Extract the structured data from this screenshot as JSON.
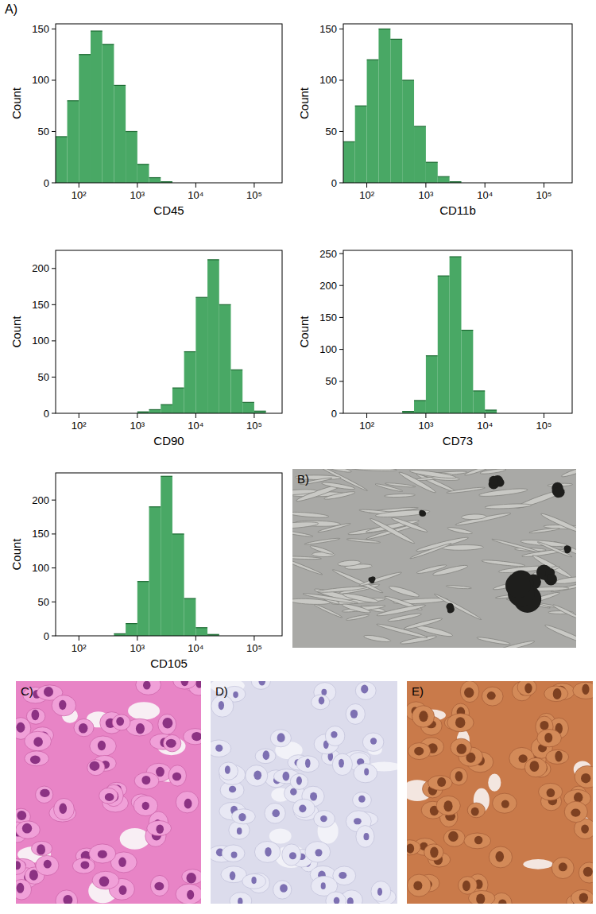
{
  "panel_label": "A)",
  "chart_data": [
    {
      "type": "histogram",
      "x_label": "CD45",
      "y_label": "Count",
      "log": "x",
      "color": "#49a865",
      "bins": [
        39.8,
        63.1,
        100,
        158.5,
        251.2,
        398.1,
        631,
        1000,
        1584.9,
        2511.9,
        3981.1
      ],
      "counts": [
        45,
        80,
        125,
        148,
        135,
        95,
        50,
        18,
        5,
        1
      ],
      "xlim": [
        40,
        300000
      ],
      "ylim": [
        0,
        155
      ],
      "xticks": [
        {
          "value": 100,
          "label": "10²"
        },
        {
          "value": 1000,
          "label": "10³"
        },
        {
          "value": 10000,
          "label": "10⁴"
        },
        {
          "value": 100000,
          "label": "10⁵"
        }
      ],
      "yticks": [
        0,
        50,
        100,
        150
      ]
    },
    {
      "type": "histogram",
      "x_label": "CD11b",
      "y_label": "Count",
      "log": "x",
      "color": "#49a865",
      "bins": [
        39.8,
        63.1,
        100,
        158.5,
        251.2,
        398.1,
        631,
        1000,
        1584.9,
        2511.9,
        3981.1
      ],
      "counts": [
        40,
        75,
        120,
        150,
        140,
        100,
        55,
        20,
        6,
        1
      ],
      "xlim": [
        40,
        300000
      ],
      "ylim": [
        0,
        155
      ],
      "xticks": [
        {
          "value": 100,
          "label": "10²"
        },
        {
          "value": 1000,
          "label": "10³"
        },
        {
          "value": 10000,
          "label": "10⁴"
        },
        {
          "value": 100000,
          "label": "10⁵"
        }
      ],
      "yticks": [
        0,
        50,
        100,
        150
      ]
    },
    {
      "type": "histogram",
      "x_label": "CD90",
      "y_label": "Count",
      "log": "x",
      "color": "#49a865",
      "bins": [
        1000,
        1584.9,
        2511.9,
        3981.1,
        6309.6,
        10000,
        15848.9,
        25118.9,
        39810.7,
        63095.7,
        100000,
        158489.3
      ],
      "counts": [
        2,
        5,
        12,
        35,
        85,
        160,
        212,
        150,
        60,
        15,
        3
      ],
      "xlim": [
        40,
        300000
      ],
      "ylim": [
        0,
        225
      ],
      "xticks": [
        {
          "value": 100,
          "label": "10²"
        },
        {
          "value": 1000,
          "label": "10³"
        },
        {
          "value": 10000,
          "label": "10⁴"
        },
        {
          "value": 100000,
          "label": "10⁵"
        }
      ],
      "yticks": [
        0,
        50,
        100,
        150,
        200
      ]
    },
    {
      "type": "histogram",
      "x_label": "CD73",
      "y_label": "Count",
      "log": "x",
      "color": "#49a865",
      "bins": [
        398.1,
        631,
        1000,
        1584.9,
        2511.9,
        3981.1,
        6309.6,
        10000,
        15848.9
      ],
      "counts": [
        3,
        20,
        90,
        215,
        245,
        130,
        35,
        5
      ],
      "xlim": [
        40,
        300000
      ],
      "ylim": [
        0,
        255
      ],
      "xticks": [
        {
          "value": 100,
          "label": "10²"
        },
        {
          "value": 1000,
          "label": "10³"
        },
        {
          "value": 10000,
          "label": "10⁴"
        },
        {
          "value": 100000,
          "label": "10⁵"
        }
      ],
      "yticks": [
        0,
        50,
        100,
        150,
        200,
        250
      ]
    },
    {
      "type": "histogram",
      "x_label": "CD105",
      "y_label": "Count",
      "log": "x",
      "color": "#49a865",
      "bins": [
        398.1,
        631,
        1000,
        1584.9,
        2511.9,
        3981.1,
        6309.6,
        10000,
        15848.9,
        25118.9
      ],
      "counts": [
        3,
        18,
        80,
        190,
        235,
        150,
        55,
        12,
        2
      ],
      "xlim": [
        40,
        300000
      ],
      "ylim": [
        0,
        240
      ],
      "xticks": [
        {
          "value": 100,
          "label": "10²"
        },
        {
          "value": 1000,
          "label": "10³"
        },
        {
          "value": 10000,
          "label": "10⁴"
        },
        {
          "value": 100000,
          "label": "10⁵"
        }
      ],
      "yticks": [
        0,
        50,
        100,
        150,
        200
      ]
    }
  ],
  "images": [
    {
      "label": "B)"
    },
    {
      "label": "C)"
    },
    {
      "label": "D)"
    },
    {
      "label": "E)"
    }
  ]
}
